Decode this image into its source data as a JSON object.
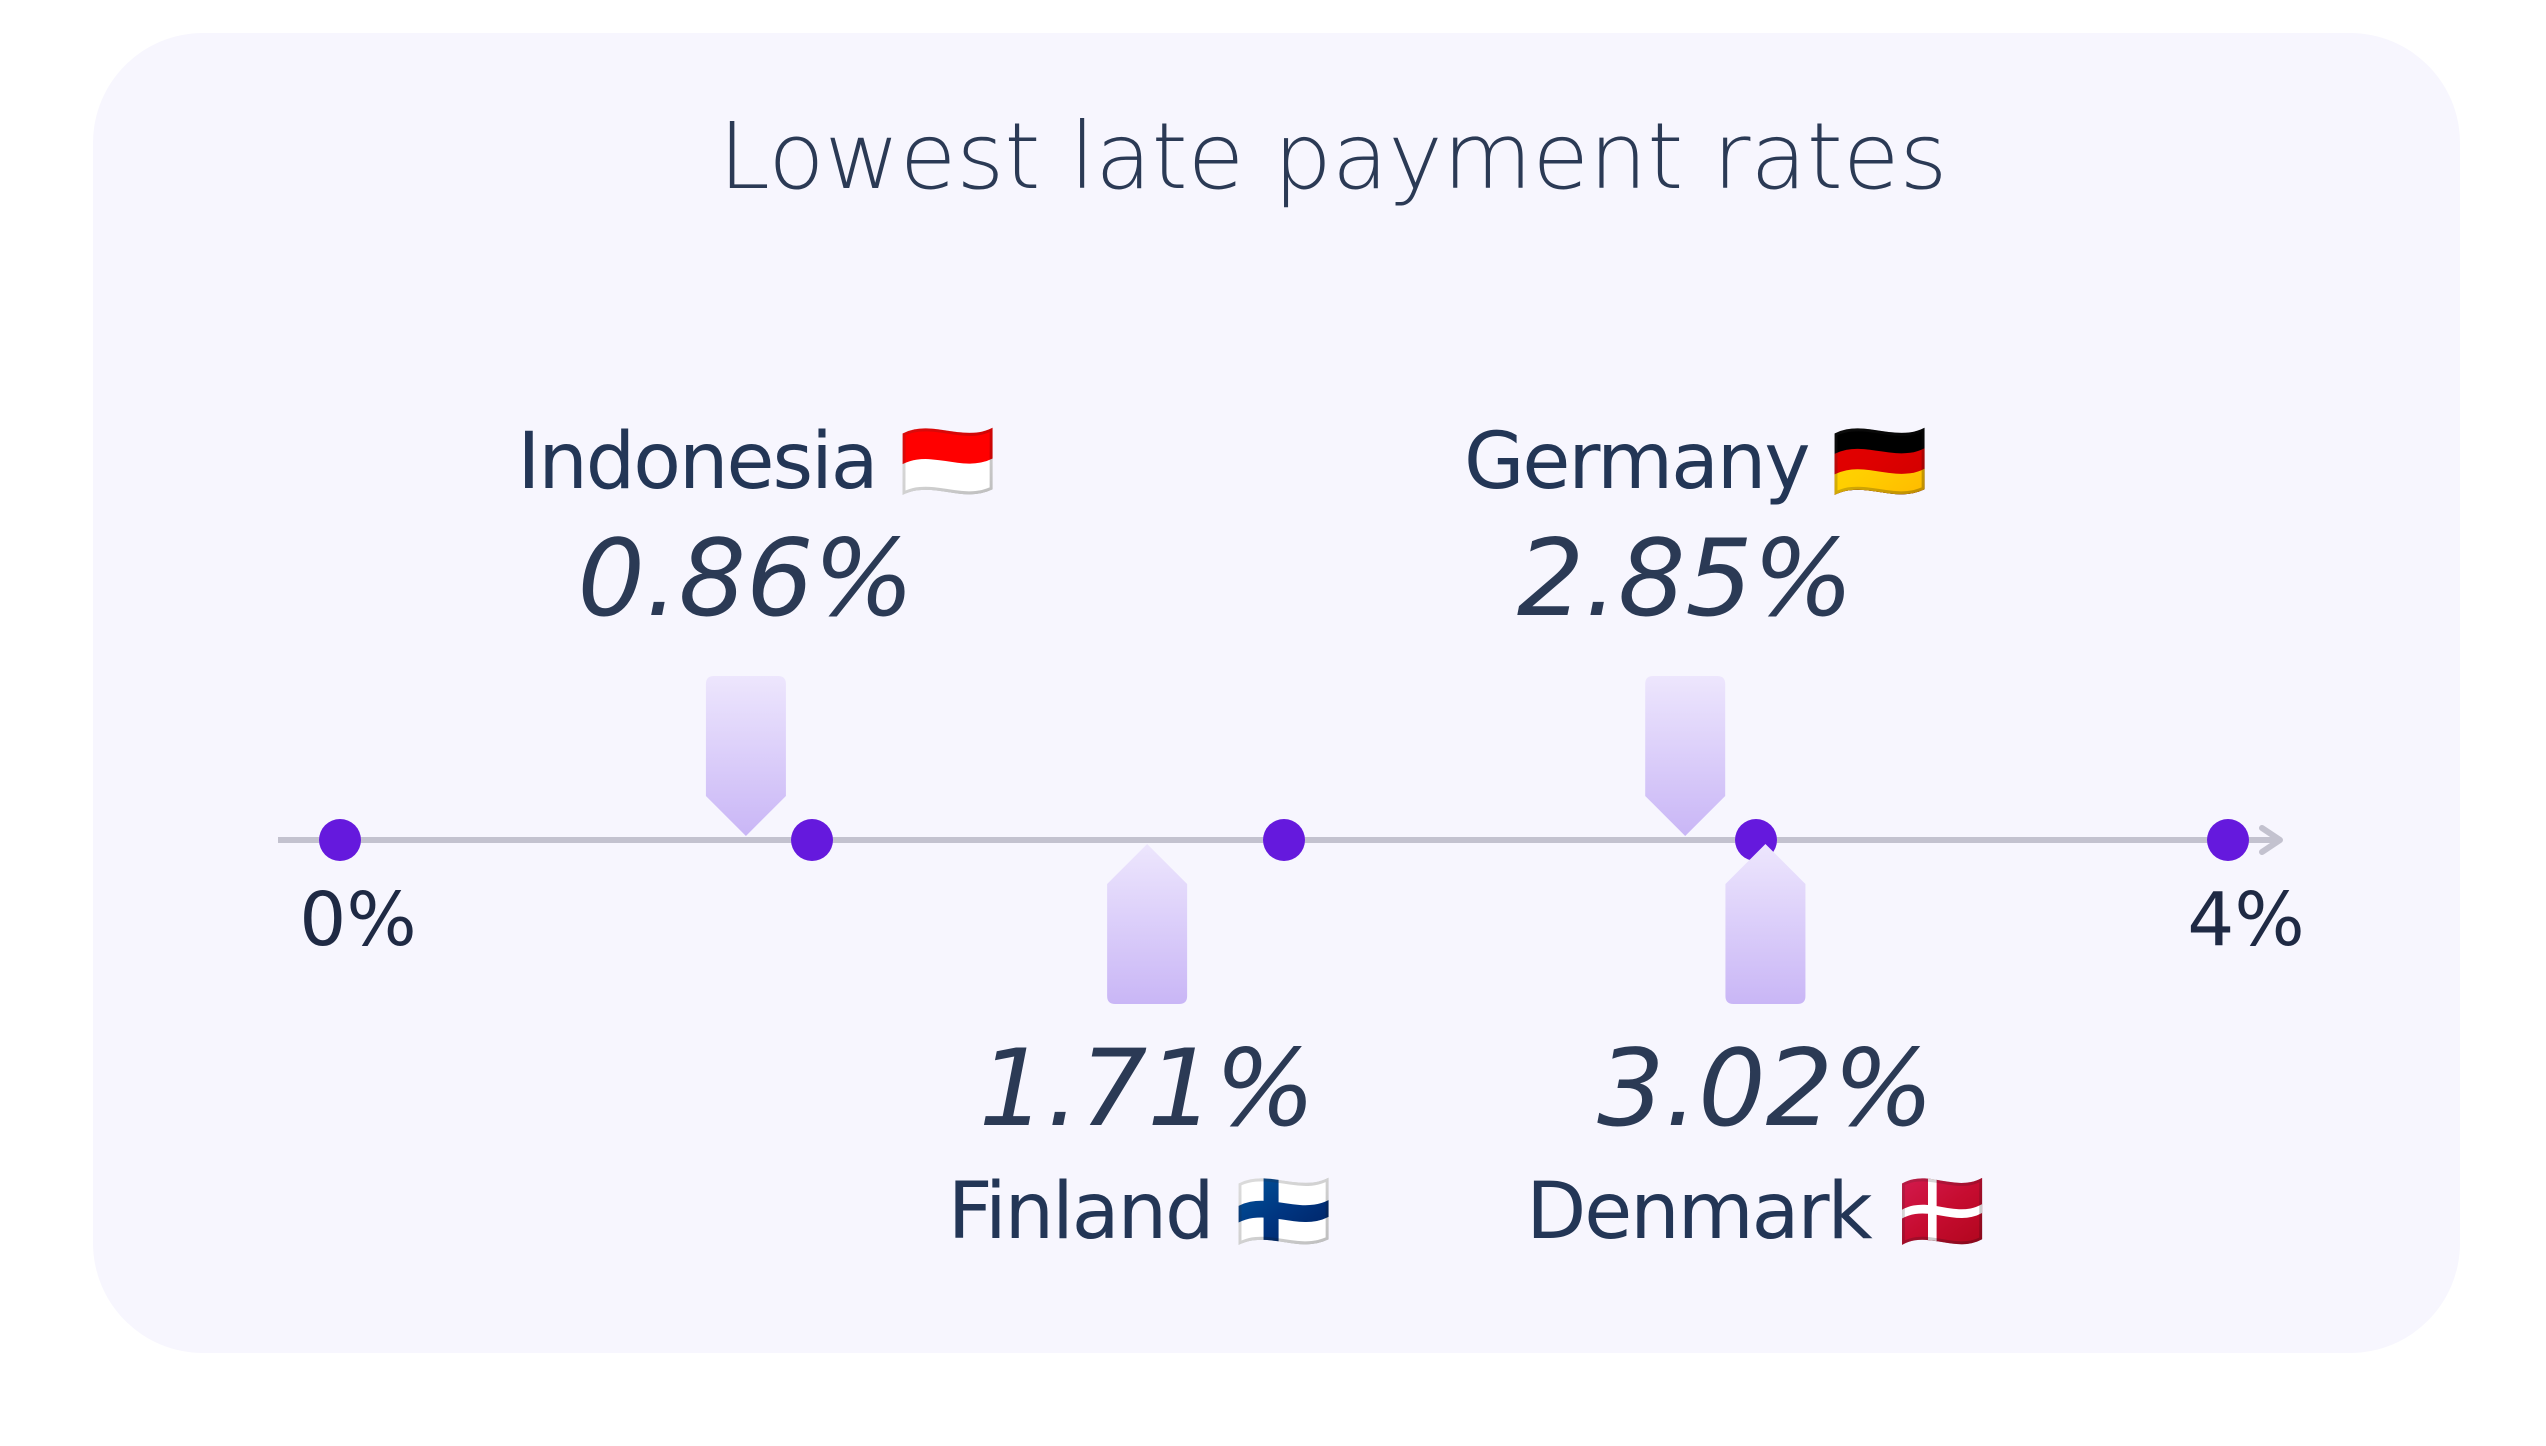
{
  "chart_data": {
    "type": "scatter",
    "title": "Lowest late payment rates",
    "xlim": [
      0,
      4
    ],
    "ticks": [
      0,
      1,
      2,
      3,
      4
    ],
    "tick_labels": [
      "0%",
      "",
      "",
      "",
      "4%"
    ],
    "points": [
      {
        "country": "Indonesia",
        "flag": "🇮🇩",
        "value": 0.86,
        "label": "0.86%",
        "side": "above"
      },
      {
        "country": "Finland",
        "flag": "🇫🇮",
        "value": 1.71,
        "label": "1.71%",
        "side": "below"
      },
      {
        "country": "Germany",
        "flag": "🇩🇪",
        "value": 2.85,
        "label": "2.85%",
        "side": "above"
      },
      {
        "country": "Denmark",
        "flag": "🇩🇰",
        "value": 3.02,
        "label": "3.02%",
        "side": "below"
      }
    ],
    "colors": {
      "tick_dot": "#6519dd",
      "marker_top": "#ede6fd",
      "marker_bottom": "#c9b6f6",
      "axis": "#c3c2cf"
    }
  }
}
